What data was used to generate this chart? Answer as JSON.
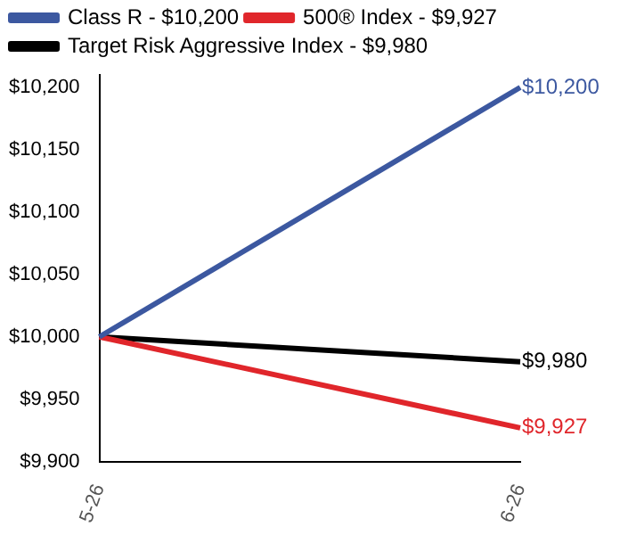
{
  "chart_data": {
    "type": "line",
    "categories": [
      "5-26",
      "6-26"
    ],
    "series": [
      {
        "name": "Class R - $10,200",
        "color": "#3c58a0",
        "values": [
          10000,
          10200
        ],
        "value_labels": [
          null,
          "$10,200"
        ]
      },
      {
        "name": "500® Index - $9,927",
        "color": "#e0262b",
        "values": [
          10000,
          9927
        ],
        "value_labels": [
          null,
          "$9,927"
        ]
      },
      {
        "name": "Target Risk Aggressive Index - $9,980",
        "color": "#000000",
        "values": [
          10000,
          9980
        ],
        "value_labels": [
          null,
          "$9,980"
        ]
      }
    ],
    "ylim": [
      9900,
      10210
    ],
    "yticks": [
      {
        "value": 9900,
        "label": "$9,900"
      },
      {
        "value": 9950,
        "label": "$9,950"
      },
      {
        "value": 10000,
        "label": "$10,000"
      },
      {
        "value": 10050,
        "label": "$10,050"
      },
      {
        "value": 10100,
        "label": "$10,100"
      },
      {
        "value": 10150,
        "label": "$10,150"
      },
      {
        "value": 10200,
        "label": "$10,200"
      }
    ],
    "grid": false,
    "legend": "top left",
    "marker": "none",
    "line_style": "solid"
  }
}
